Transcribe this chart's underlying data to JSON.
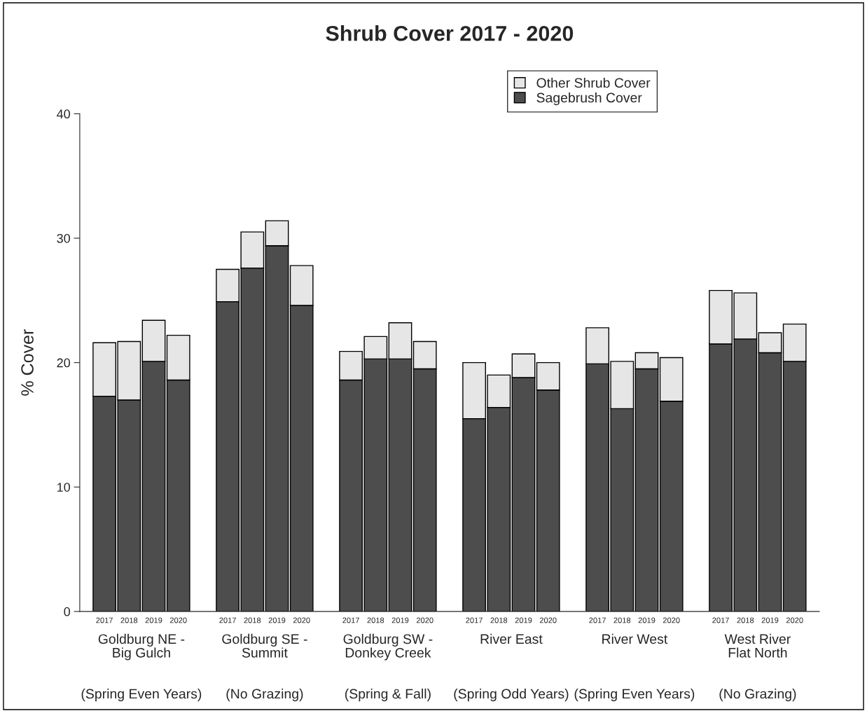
{
  "chart_data": {
    "type": "bar",
    "stacked": true,
    "title": "Shrub Cover 2017 - 2020",
    "ylabel": "% Cover",
    "categories": [
      "2017",
      "2018",
      "2019",
      "2020",
      null,
      "2017",
      "2018",
      "2019",
      "2020",
      null,
      "2017",
      "2018",
      "2019",
      "2020",
      null,
      "2017",
      "2018",
      "2019",
      "2020",
      null,
      "2017",
      "2018",
      "2019",
      "2020",
      null,
      "2017",
      "2018",
      "2019",
      "2020"
    ],
    "series": [
      {
        "name": "Sagebrush Cover",
        "color": "#4d4d4d",
        "values": [
          17.3,
          17.0,
          20.1,
          18.6,
          null,
          24.9,
          27.6,
          29.4,
          24.6,
          null,
          18.6,
          20.3,
          20.3,
          19.5,
          null,
          15.5,
          16.4,
          18.8,
          17.8,
          null,
          19.9,
          16.3,
          19.5,
          16.9,
          null,
          21.5,
          21.9,
          20.8,
          20.1
        ]
      },
      {
        "name": "Other Shrub Cover",
        "color": "#e6e6e6",
        "values": [
          4.3,
          4.7,
          3.3,
          3.6,
          null,
          2.6,
          2.9,
          2.0,
          3.2,
          null,
          2.3,
          1.8,
          2.9,
          2.2,
          null,
          4.5,
          2.6,
          1.9,
          2.2,
          null,
          2.9,
          3.8,
          1.3,
          3.5,
          null,
          4.3,
          3.7,
          1.6,
          3.0
        ]
      }
    ],
    "ylim": [
      0,
      40
    ],
    "yticks": [
      0,
      10,
      20,
      30,
      40
    ],
    "grid": false,
    "legend": "top right",
    "annotations": [
      "Goldburg NE -\nBig Gulch",
      "Goldburg SE -\nSummit",
      "Goldburg SW -\nDonkey Creek",
      "River East",
      "River West",
      "West River\nFlat North",
      "(Spring Even Years)",
      "(No Grazing)",
      "(Spring & Fall)",
      "(Spring Odd Years)",
      "(Spring Even Years)",
      "(No Grazing)"
    ]
  }
}
